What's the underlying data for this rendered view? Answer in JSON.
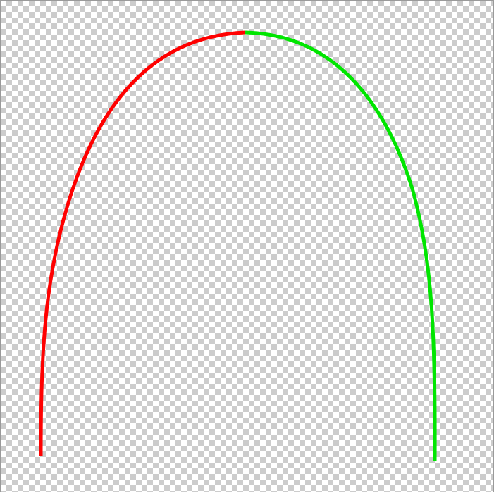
{
  "canvas": {
    "background": "transparency-checkerboard",
    "checker_light": "#ffffff",
    "checker_dark": "#cccccc"
  },
  "curves": {
    "left_half": {
      "color": "#ff0000",
      "icon": "red-arc"
    },
    "right_half": {
      "color": "#00e600",
      "icon": "green-arc"
    }
  }
}
